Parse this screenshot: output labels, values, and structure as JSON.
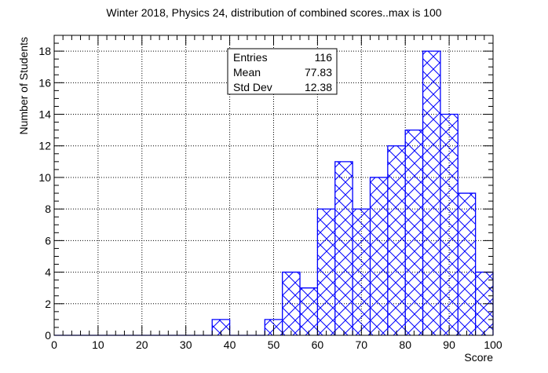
{
  "chart_data": {
    "type": "bar",
    "title": "Winter 2018, Physics 24, distribution of combined scores..max is 100",
    "xlabel": "Score",
    "ylabel": "Number of Students",
    "xlim": [
      0,
      100
    ],
    "ylim": [
      0,
      19
    ],
    "x_ticks": [
      0,
      10,
      20,
      30,
      40,
      50,
      60,
      70,
      80,
      90,
      100
    ],
    "y_ticks": [
      0,
      2,
      4,
      6,
      8,
      10,
      12,
      14,
      16,
      18
    ],
    "bin_width": 4,
    "bins": [
      {
        "x0": 36,
        "x1": 40,
        "value": 1
      },
      {
        "x0": 48,
        "x1": 52,
        "value": 1
      },
      {
        "x0": 52,
        "x1": 56,
        "value": 4
      },
      {
        "x0": 56,
        "x1": 60,
        "value": 3
      },
      {
        "x0": 60,
        "x1": 64,
        "value": 8
      },
      {
        "x0": 64,
        "x1": 68,
        "value": 11
      },
      {
        "x0": 68,
        "x1": 72,
        "value": 8
      },
      {
        "x0": 72,
        "x1": 76,
        "value": 10
      },
      {
        "x0": 76,
        "x1": 80,
        "value": 12
      },
      {
        "x0": 80,
        "x1": 84,
        "value": 13
      },
      {
        "x0": 84,
        "x1": 88,
        "value": 18
      },
      {
        "x0": 88,
        "x1": 92,
        "value": 14
      },
      {
        "x0": 92,
        "x1": 96,
        "value": 9
      },
      {
        "x0": 96,
        "x1": 100,
        "value": 4
      }
    ],
    "stats": {
      "entries_label": "Entries",
      "entries_value": "116",
      "mean_label": "Mean",
      "mean_value": "77.83",
      "stddev_label": "Std Dev",
      "stddev_value": "12.38"
    },
    "colors": {
      "bar": "#0000ff",
      "axis": "#000000",
      "grid": "#000000"
    },
    "grid": true,
    "legend_position": "top-center"
  }
}
